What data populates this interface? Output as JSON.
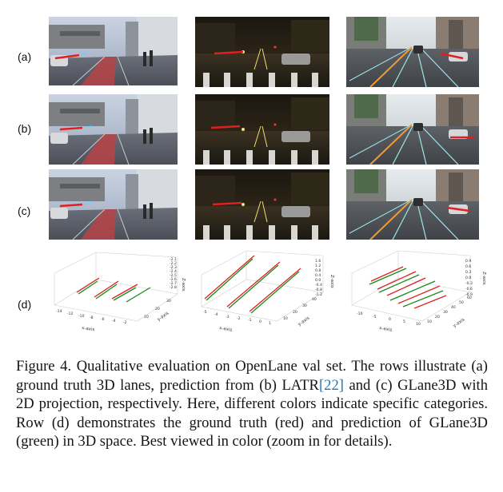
{
  "rows": [
    {
      "label": "(a)"
    },
    {
      "label": "(b)"
    },
    {
      "label": "(c)"
    },
    {
      "label": "(d)"
    }
  ],
  "plots": [
    {
      "axis_x": "x-axis",
      "axis_y": "y-axis",
      "axis_z": "Z-axis",
      "x_ticks": [
        "-14",
        "-12",
        "-10",
        "-8",
        "-6",
        "-4",
        "-2"
      ],
      "y_ticks": [
        "10",
        "20",
        "30"
      ],
      "z_ticks": [
        "-2.1",
        "-2.2",
        "-2.3",
        "-2.4",
        "-2.5",
        "-2.6",
        "-2.7",
        "-2.8"
      ]
    },
    {
      "axis_x": "x-axis",
      "axis_y": "y-axis",
      "axis_z": "Z-axis",
      "x_ticks": [
        "-5",
        "-4",
        "-3",
        "-2",
        "-1",
        "0",
        "1"
      ],
      "y_ticks": [
        "10",
        "20",
        "30",
        "40"
      ],
      "z_ticks": [
        "1.6",
        "1.2",
        "0.8",
        "0.4",
        "0.0",
        "-0.4",
        "-0.8",
        "-1.2"
      ]
    },
    {
      "axis_x": "x-axis",
      "axis_y": "y-axis",
      "axis_z": "Z-axis",
      "x_ticks": [
        "-10",
        "-5",
        "0",
        "5",
        "10"
      ],
      "y_ticks": [
        "10",
        "20",
        "30",
        "40",
        "50",
        "60"
      ],
      "z_ticks": [
        "0.9",
        "0.6",
        "0.3",
        "0.0",
        "-0.3",
        "-0.6",
        "-0.9"
      ]
    }
  ],
  "caption": {
    "part1": "Figure 4.  Qualitative evaluation on OpenLane val set.  The rows illustrate (a) ground truth 3D lanes, prediction from (b) LATR",
    "cite_open": "[",
    "cite": "22",
    "cite_close": "]",
    "part2": " and (c) GLane3D with 2D projection, respectively. Here, different colors indicate specific categories. Row (d) demonstrates the ground truth (red) and prediction of GLane3D (green) in 3D space. Best viewed in color (zoom in for details)."
  }
}
